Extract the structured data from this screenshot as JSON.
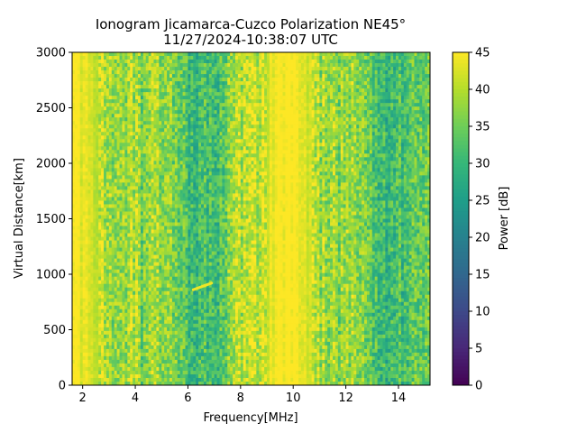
{
  "chart_data": {
    "type": "heatmap",
    "title": "Ionogram Jicamarca-Cuzco Polarization NE45°",
    "subtitle": "11/27/2024-10:38:07 UTC",
    "xlabel": "Frequency[MHz]",
    "ylabel": "Virtual Distance[km]",
    "xlim": [
      1.6,
      15.2
    ],
    "ylim": [
      0,
      3000
    ],
    "xticks": [
      2,
      4,
      6,
      8,
      10,
      12,
      14
    ],
    "yticks": [
      0,
      500,
      1000,
      1500,
      2000,
      2500,
      3000
    ],
    "colorbar": {
      "label": "Power [dB]",
      "colormap": "viridis",
      "range": [
        0,
        45
      ],
      "ticks": [
        0,
        5,
        10,
        15,
        20,
        25,
        30,
        35,
        40,
        45
      ]
    },
    "grid": false,
    "intensity_profile_by_frequency": {
      "description": "approximate mean power per frequency band (dB), uniform over distance",
      "frequency_mhz": [
        1.6,
        2.2,
        2.8,
        3.2,
        3.6,
        4.0,
        4.3,
        4.6,
        5.0,
        5.5,
        5.8,
        6.0,
        6.5,
        7.0,
        7.3,
        7.6,
        8.0,
        8.5,
        9.0,
        9.5,
        10.0,
        10.5,
        10.8,
        11.2,
        11.7,
        12.2,
        12.7,
        13.2,
        13.6,
        14.0,
        14.5,
        15.2
      ],
      "mean_power_db": [
        44,
        44,
        41,
        36,
        39,
        40,
        34,
        40,
        38,
        36,
        33,
        30,
        32,
        30,
        34,
        38,
        40,
        40,
        42,
        44,
        45,
        44,
        40,
        38,
        37,
        38,
        37,
        32,
        30,
        31,
        33,
        34
      ]
    },
    "annotations": [
      {
        "type": "trace",
        "frequency_mhz": [
          6.2,
          6.9
        ],
        "distance_km": [
          860,
          920
        ],
        "power_db": 44
      }
    ]
  }
}
